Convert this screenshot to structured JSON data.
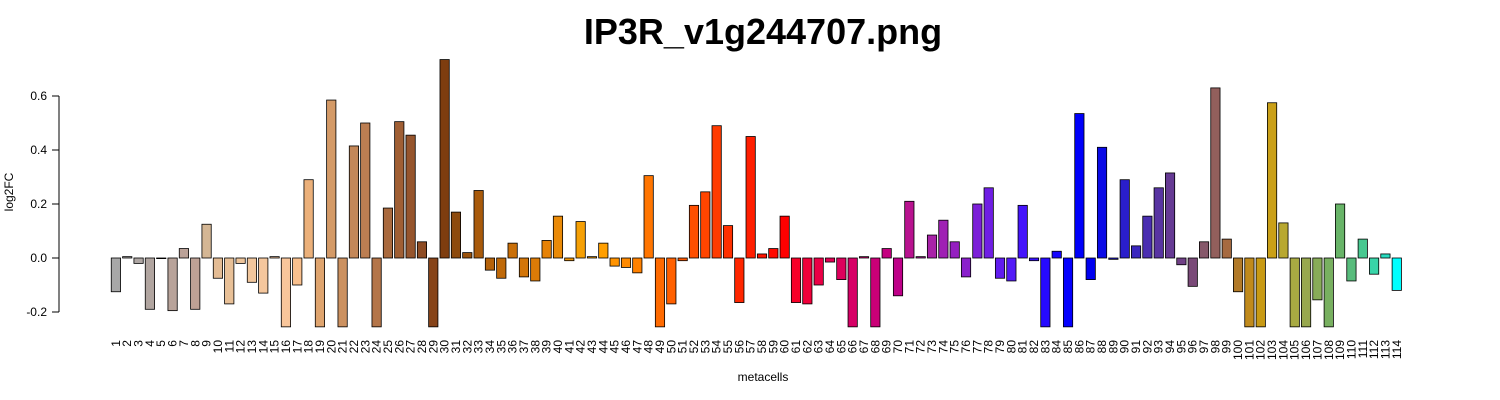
{
  "chart_data": {
    "type": "bar",
    "title": "IP3R_v1g244707.png",
    "xlabel": "metacells",
    "ylabel": "log2FC",
    "ylim": [
      -0.255,
      0.735
    ],
    "yticks": [
      -0.2,
      0.0,
      0.2,
      0.4,
      0.6
    ],
    "ytick_labels": [
      "-0.2",
      "0.0",
      "0.2",
      "0.4",
      "0.6"
    ],
    "grid": false,
    "legend": "none",
    "categories": [
      "1",
      "2",
      "3",
      "4",
      "5",
      "6",
      "7",
      "8",
      "9",
      "10",
      "11",
      "12",
      "13",
      "14",
      "15",
      "16",
      "17",
      "18",
      "19",
      "20",
      "21",
      "22",
      "23",
      "24",
      "25",
      "26",
      "27",
      "28",
      "29",
      "30",
      "31",
      "32",
      "33",
      "34",
      "35",
      "36",
      "37",
      "38",
      "39",
      "40",
      "41",
      "42",
      "43",
      "44",
      "45",
      "46",
      "47",
      "48",
      "49",
      "50",
      "51",
      "52",
      "53",
      "54",
      "55",
      "56",
      "57",
      "58",
      "59",
      "60",
      "61",
      "62",
      "63",
      "64",
      "65",
      "66",
      "67",
      "68",
      "69",
      "70",
      "71",
      "72",
      "73",
      "74",
      "75",
      "76",
      "77",
      "78",
      "79",
      "80",
      "81",
      "82",
      "83",
      "84",
      "85",
      "86",
      "87",
      "88",
      "89",
      "90",
      "91",
      "92",
      "93",
      "94",
      "95",
      "96",
      "97",
      "98",
      "99",
      "100",
      "101",
      "102",
      "103",
      "104",
      "105",
      "106",
      "107",
      "108",
      "109",
      "110",
      "111",
      "112",
      "113",
      "114"
    ],
    "values": [
      -0.125,
      0.005,
      -0.02,
      -0.19,
      0.0,
      -0.195,
      0.035,
      -0.19,
      0.125,
      -0.075,
      -0.17,
      -0.02,
      -0.09,
      -0.13,
      0.005,
      -0.255,
      -0.1,
      0.29,
      -0.255,
      0.585,
      -0.255,
      0.415,
      0.5,
      -0.255,
      0.185,
      0.505,
      0.455,
      0.06,
      -0.255,
      0.735,
      0.17,
      0.02,
      0.25,
      -0.045,
      -0.075,
      0.055,
      -0.07,
      -0.085,
      0.065,
      0.155,
      -0.01,
      0.135,
      0.005,
      0.055,
      -0.03,
      -0.035,
      -0.055,
      0.305,
      -0.255,
      -0.17,
      -0.01,
      0.195,
      0.245,
      0.49,
      0.12,
      -0.165,
      0.45,
      0.015,
      0.035,
      0.155,
      -0.165,
      -0.17,
      -0.1,
      -0.015,
      -0.08,
      -0.255,
      0.005,
      -0.255,
      0.035,
      -0.14,
      0.21,
      0.005,
      0.085,
      0.14,
      0.06,
      -0.07,
      0.2,
      0.26,
      -0.075,
      -0.085,
      0.195,
      -0.01,
      -0.255,
      0.025,
      -0.255,
      0.535,
      -0.08,
      0.41,
      -0.005,
      0.29,
      0.045,
      0.155,
      0.26,
      0.315,
      -0.025,
      -0.105,
      0.06,
      0.63,
      0.07,
      -0.125,
      -0.255,
      -0.255,
      0.575,
      0.13,
      -0.255,
      -0.255,
      -0.155,
      -0.255,
      0.2,
      -0.085,
      0.07,
      -0.06,
      0.015,
      -0.12
    ],
    "colors": [
      "#A8A8A8",
      "#ABA7A5",
      "#AEA6A3",
      "#B1A5A0",
      "#B4A49D",
      "#B8A39A",
      "#BBA298",
      "#BEA195",
      "#D4B694",
      "#E4BC94",
      "#E8C097",
      "#EDC49A",
      "#F1C69C",
      "#F5C79D",
      "#F8C89F",
      "#F9C69B",
      "#F9C08E",
      "#EBB07A",
      "#DFA46E",
      "#D49A67",
      "#CC9160",
      "#C48758",
      "#BC7E52",
      "#B47549",
      "#A9693D",
      "#A05F34",
      "#96552D",
      "#8E4C24",
      "#874419",
      "#7E3D0F",
      "#8D4A0D",
      "#9A520C",
      "#A85A0B",
      "#B5620A",
      "#BF6909",
      "#C96F08",
      "#D37508",
      "#DC7B07",
      "#E68207",
      "#EA8A07",
      "#F19507",
      "#F5A006",
      "#FFA500",
      "#FF9F00",
      "#FF9300",
      "#FF8A00",
      "#FF8100",
      "#FF7500",
      "#FF6A00",
      "#FF6000",
      "#FF5800",
      "#FF4F00",
      "#FF4500",
      "#FF3B00",
      "#FF3000",
      "#FF2600",
      "#FF1E00",
      "#FF1400",
      "#FF0A00",
      "#FF0000",
      "#F70028",
      "#F0003A",
      "#EA0046",
      "#E20052",
      "#DD005C",
      "#D60066",
      "#D0006F",
      "#CA0077",
      "#C40080",
      "#BE0088",
      "#B8138F",
      "#B01E9B",
      "#A822A8",
      "#9F20B4",
      "#9520C0",
      "#8A20CC",
      "#7C1FD8",
      "#6F1EE4",
      "#611CEF",
      "#531AF7",
      "#4515FB",
      "#3610FD",
      "#260AFF",
      "#1605FF",
      "#0500FF",
      "#0000FA",
      "#0000F0",
      "#0A0AE6",
      "#1A14D8",
      "#2A1ECB",
      "#3A26BE",
      "#4A2EB1",
      "#5834A2",
      "#663A94",
      "#704086",
      "#7A4A78",
      "#86586A",
      "#925F5C",
      "#A66A40",
      "#B27A28",
      "#C08A1C",
      "#C89A14",
      "#CAA018",
      "#B8A830",
      "#A8AA42",
      "#98A84E",
      "#88AC58",
      "#78B060",
      "#68B468",
      "#58BC7C",
      "#48C890",
      "#38D4A8",
      "#28DCC0",
      "#00FFFF"
    ]
  }
}
